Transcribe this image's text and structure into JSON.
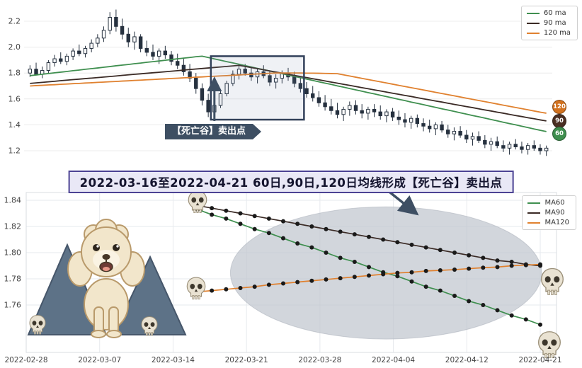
{
  "title": {
    "text": "2022-03-16至2022-04-21 60日,90日,120日均线形成【死亡谷】卖出点"
  },
  "annotations": {
    "sell_label": "【死亡谷】卖出点",
    "icons": [
      "skull-icon",
      "poodle-dog-icon",
      "mountain-icon",
      "arrow-up-icon",
      "arrow-down-right-icon"
    ]
  },
  "colors": {
    "ma60": "#3f8f4f",
    "ma90": "#3a2a25",
    "ma120": "#e0812f",
    "candle": "#26313f",
    "highlight_box": "#32415a",
    "arrow": "#3e4f63",
    "ellipse": "#bfc5cd",
    "title_border": "#4c4394",
    "title_bg": "#e9e8f6"
  },
  "chart_data": [
    {
      "type": "candlestick",
      "title": "",
      "xlabel": "",
      "ylabel": "",
      "yticks": [
        1.2,
        1.4,
        1.6,
        1.8,
        2.0,
        2.2
      ],
      "ylim": [
        1.14,
        2.33
      ],
      "grid": "horizontal",
      "legend_position": "upper right",
      "legend": [
        {
          "label": "60 ma",
          "color": "#3f8f4f"
        },
        {
          "label": "90 ma",
          "color": "#3a2a25"
        },
        {
          "label": "120 ma",
          "color": "#e0812f"
        }
      ],
      "badges": [
        {
          "label": "120",
          "color": "#d2711e",
          "y_value": 1.54
        },
        {
          "label": "90",
          "color": "#4a2e22",
          "y_value": 1.43
        },
        {
          "label": "60",
          "color": "#3f8f4f",
          "y_value": 1.33
        }
      ],
      "candles": [
        [
          1.8,
          1.86,
          1.77,
          1.83
        ],
        [
          1.83,
          1.88,
          1.8,
          1.79
        ],
        [
          1.79,
          1.85,
          1.76,
          1.82
        ],
        [
          1.82,
          1.9,
          1.8,
          1.88
        ],
        [
          1.88,
          1.94,
          1.85,
          1.91
        ],
        [
          1.91,
          1.96,
          1.87,
          1.89
        ],
        [
          1.89,
          1.95,
          1.86,
          1.93
        ],
        [
          1.93,
          1.99,
          1.9,
          1.97
        ],
        [
          1.97,
          2.02,
          1.93,
          1.95
        ],
        [
          1.95,
          2.01,
          1.92,
          1.99
        ],
        [
          1.99,
          2.06,
          1.96,
          2.03
        ],
        [
          2.03,
          2.1,
          2.0,
          2.07
        ],
        [
          2.07,
          2.16,
          2.04,
          2.13
        ],
        [
          2.13,
          2.27,
          2.1,
          2.23
        ],
        [
          2.23,
          2.29,
          2.12,
          2.16
        ],
        [
          2.16,
          2.22,
          2.06,
          2.1
        ],
        [
          2.1,
          2.15,
          2.0,
          2.04
        ],
        [
          2.04,
          2.12,
          1.98,
          2.08
        ],
        [
          2.08,
          2.1,
          1.96,
          1.99
        ],
        [
          1.99,
          2.05,
          1.93,
          1.96
        ],
        [
          1.96,
          2.02,
          1.9,
          1.93
        ],
        [
          1.93,
          1.99,
          1.87,
          1.97
        ],
        [
          1.97,
          2.01,
          1.91,
          1.94
        ],
        [
          1.94,
          1.97,
          1.86,
          1.89
        ],
        [
          1.89,
          1.95,
          1.83,
          1.86
        ],
        [
          1.86,
          1.91,
          1.78,
          1.81
        ],
        [
          1.81,
          1.87,
          1.73,
          1.76
        ],
        [
          1.76,
          1.8,
          1.64,
          1.68
        ],
        [
          1.68,
          1.72,
          1.55,
          1.59
        ],
        [
          1.59,
          1.64,
          1.46,
          1.5
        ],
        [
          1.5,
          1.58,
          1.45,
          1.55
        ],
        [
          1.55,
          1.66,
          1.53,
          1.64
        ],
        [
          1.64,
          1.74,
          1.62,
          1.72
        ],
        [
          1.72,
          1.82,
          1.7,
          1.79
        ],
        [
          1.79,
          1.86,
          1.75,
          1.83
        ],
        [
          1.83,
          1.87,
          1.78,
          1.8
        ],
        [
          1.8,
          1.85,
          1.74,
          1.77
        ],
        [
          1.77,
          1.83,
          1.72,
          1.81
        ],
        [
          1.81,
          1.86,
          1.76,
          1.78
        ],
        [
          1.78,
          1.82,
          1.7,
          1.73
        ],
        [
          1.73,
          1.79,
          1.68,
          1.76
        ],
        [
          1.76,
          1.82,
          1.72,
          1.8
        ],
        [
          1.8,
          1.84,
          1.74,
          1.77
        ],
        [
          1.77,
          1.81,
          1.69,
          1.72
        ],
        [
          1.72,
          1.77,
          1.65,
          1.68
        ],
        [
          1.68,
          1.73,
          1.61,
          1.64
        ],
        [
          1.64,
          1.7,
          1.58,
          1.61
        ],
        [
          1.61,
          1.66,
          1.54,
          1.57
        ],
        [
          1.57,
          1.63,
          1.51,
          1.54
        ],
        [
          1.54,
          1.6,
          1.48,
          1.51
        ],
        [
          1.51,
          1.57,
          1.45,
          1.48
        ],
        [
          1.48,
          1.54,
          1.43,
          1.52
        ],
        [
          1.52,
          1.58,
          1.47,
          1.55
        ],
        [
          1.55,
          1.59,
          1.48,
          1.51
        ],
        [
          1.51,
          1.56,
          1.45,
          1.49
        ],
        [
          1.49,
          1.54,
          1.44,
          1.52
        ],
        [
          1.52,
          1.56,
          1.46,
          1.5
        ],
        [
          1.5,
          1.55,
          1.44,
          1.47
        ],
        [
          1.47,
          1.52,
          1.42,
          1.5
        ],
        [
          1.5,
          1.53,
          1.43,
          1.46
        ],
        [
          1.46,
          1.51,
          1.4,
          1.44
        ],
        [
          1.44,
          1.49,
          1.38,
          1.42
        ],
        [
          1.42,
          1.47,
          1.37,
          1.45
        ],
        [
          1.45,
          1.48,
          1.38,
          1.41
        ],
        [
          1.41,
          1.45,
          1.35,
          1.39
        ],
        [
          1.39,
          1.44,
          1.34,
          1.37
        ],
        [
          1.37,
          1.42,
          1.32,
          1.4
        ],
        [
          1.4,
          1.43,
          1.34,
          1.36
        ],
        [
          1.36,
          1.4,
          1.3,
          1.33
        ],
        [
          1.33,
          1.38,
          1.28,
          1.35
        ],
        [
          1.35,
          1.39,
          1.3,
          1.32
        ],
        [
          1.32,
          1.36,
          1.26,
          1.29
        ],
        [
          1.29,
          1.34,
          1.24,
          1.31
        ],
        [
          1.31,
          1.35,
          1.26,
          1.28
        ],
        [
          1.28,
          1.32,
          1.22,
          1.25
        ],
        [
          1.25,
          1.3,
          1.2,
          1.27
        ],
        [
          1.27,
          1.31,
          1.22,
          1.24
        ],
        [
          1.24,
          1.28,
          1.19,
          1.22
        ],
        [
          1.22,
          1.27,
          1.17,
          1.25
        ],
        [
          1.25,
          1.29,
          1.21,
          1.23
        ],
        [
          1.23,
          1.27,
          1.18,
          1.21
        ],
        [
          1.21,
          1.26,
          1.17,
          1.24
        ],
        [
          1.24,
          1.28,
          1.2,
          1.22
        ],
        [
          1.22,
          1.25,
          1.17,
          1.2
        ],
        [
          1.2,
          1.24,
          1.16,
          1.22
        ]
      ],
      "series": [
        {
          "name": "60 ma",
          "color": "#3f8f4f",
          "values": [
            1.78,
            1.785,
            1.791,
            1.796,
            1.802,
            1.807,
            1.812,
            1.818,
            1.823,
            1.829,
            1.834,
            1.839,
            1.845,
            1.85,
            1.856,
            1.861,
            1.866,
            1.872,
            1.877,
            1.883,
            1.888,
            1.893,
            1.899,
            1.904,
            1.91,
            1.915,
            1.92,
            1.926,
            1.93,
            1.92,
            1.909,
            1.899,
            1.888,
            1.878,
            1.868,
            1.857,
            1.847,
            1.836,
            1.826,
            1.816,
            1.805,
            1.795,
            1.784,
            1.774,
            1.764,
            1.753,
            1.743,
            1.732,
            1.722,
            1.712,
            1.701,
            1.691,
            1.68,
            1.67,
            1.66,
            1.649,
            1.639,
            1.628,
            1.618,
            1.608,
            1.597,
            1.587,
            1.576,
            1.566,
            1.556,
            1.545,
            1.535,
            1.524,
            1.514,
            1.504,
            1.493,
            1.483,
            1.472,
            1.462,
            1.452,
            1.441,
            1.431,
            1.42,
            1.41,
            1.4,
            1.389,
            1.379,
            1.368,
            1.358,
            1.348
          ]
        },
        {
          "name": "90 ma",
          "color": "#3a2a25",
          "values": [
            1.72,
            1.724,
            1.728,
            1.732,
            1.736,
            1.741,
            1.745,
            1.749,
            1.753,
            1.757,
            1.761,
            1.765,
            1.769,
            1.773,
            1.777,
            1.782,
            1.786,
            1.79,
            1.794,
            1.798,
            1.802,
            1.806,
            1.81,
            1.814,
            1.818,
            1.823,
            1.827,
            1.831,
            1.835,
            1.839,
            1.843,
            1.847,
            1.851,
            1.855,
            1.859,
            1.851,
            1.842,
            1.834,
            1.825,
            1.816,
            1.808,
            1.799,
            1.791,
            1.782,
            1.773,
            1.765,
            1.756,
            1.748,
            1.739,
            1.73,
            1.722,
            1.713,
            1.705,
            1.696,
            1.687,
            1.679,
            1.67,
            1.662,
            1.653,
            1.644,
            1.636,
            1.627,
            1.619,
            1.61,
            1.601,
            1.593,
            1.584,
            1.576,
            1.567,
            1.558,
            1.55,
            1.541,
            1.533,
            1.524,
            1.515,
            1.507,
            1.498,
            1.49,
            1.481,
            1.472,
            1.464,
            1.455,
            1.447,
            1.438,
            1.43
          ]
        },
        {
          "name": "120 ma",
          "color": "#e0812f",
          "values": [
            1.7,
            1.703,
            1.705,
            1.708,
            1.71,
            1.713,
            1.715,
            1.718,
            1.72,
            1.723,
            1.725,
            1.728,
            1.73,
            1.733,
            1.735,
            1.738,
            1.74,
            1.743,
            1.745,
            1.748,
            1.75,
            1.753,
            1.755,
            1.758,
            1.76,
            1.763,
            1.765,
            1.768,
            1.77,
            1.773,
            1.775,
            1.778,
            1.78,
            1.783,
            1.785,
            1.788,
            1.79,
            1.793,
            1.795,
            1.798,
            1.8,
            1.8,
            1.8,
            1.8,
            1.8,
            1.799,
            1.799,
            1.798,
            1.797,
            1.796,
            1.795,
            1.786,
            1.777,
            1.768,
            1.759,
            1.75,
            1.741,
            1.732,
            1.723,
            1.714,
            1.705,
            1.696,
            1.687,
            1.678,
            1.669,
            1.66,
            1.651,
            1.642,
            1.633,
            1.624,
            1.615,
            1.606,
            1.597,
            1.588,
            1.579,
            1.57,
            1.561,
            1.552,
            1.543,
            1.534,
            1.525,
            1.516,
            1.507,
            1.498,
            1.49
          ]
        }
      ],
      "highlight_box": {
        "start_index": 30,
        "end_index": 44,
        "low": 1.44,
        "high": 1.93
      },
      "sell_annotation": {
        "label": "【死亡谷】卖出点",
        "arrow_index": 30
      }
    },
    {
      "type": "line",
      "title": "",
      "xlabel": "",
      "ylabel": "",
      "x_tick_labels": [
        "2022-02-28",
        "2022-03-07",
        "2022-03-14",
        "2022-03-21",
        "2022-03-28",
        "2022-04-04",
        "2022-04-12",
        "2022-04-21"
      ],
      "yticks": [
        1.76,
        1.78,
        1.8,
        1.82,
        1.84
      ],
      "ylim": [
        1.742,
        1.848
      ],
      "grid": "both",
      "legend_position": "upper right",
      "marker": {
        "shape": "circle",
        "color": "#1a1a1a"
      },
      "dates": [
        "2022-03-16",
        "2022-03-17",
        "2022-03-18",
        "2022-03-21",
        "2022-03-22",
        "2022-03-23",
        "2022-03-24",
        "2022-03-25",
        "2022-03-28",
        "2022-03-29",
        "2022-03-30",
        "2022-03-31",
        "2022-04-01",
        "2022-04-06",
        "2022-04-07",
        "2022-04-08",
        "2022-04-11",
        "2022-04-12",
        "2022-04-13",
        "2022-04-14",
        "2022-04-15",
        "2022-04-18",
        "2022-04-19",
        "2022-04-20",
        "2022-04-21"
      ],
      "legend": [
        {
          "label": "MA60",
          "color": "#3f8f4f"
        },
        {
          "label": "MA90",
          "color": "#3a2a25"
        },
        {
          "label": "MA120",
          "color": "#e0812f"
        }
      ],
      "series": [
        {
          "name": "MA60",
          "color": "#3f8f4f",
          "values": [
            1.833,
            1.829,
            1.826,
            1.822,
            1.818,
            1.815,
            1.811,
            1.807,
            1.804,
            1.8,
            1.796,
            1.793,
            1.789,
            1.785,
            1.782,
            1.778,
            1.774,
            1.771,
            1.767,
            1.763,
            1.76,
            1.756,
            1.752,
            1.749,
            1.745
          ]
        },
        {
          "name": "MA90",
          "color": "#3a2a25",
          "values": [
            1.836,
            1.834,
            1.832,
            1.83,
            1.828,
            1.826,
            1.824,
            1.822,
            1.82,
            1.818,
            1.816,
            1.814,
            1.812,
            1.81,
            1.808,
            1.806,
            1.804,
            1.802,
            1.8,
            1.798,
            1.796,
            1.794,
            1.793,
            1.791,
            1.79
          ]
        },
        {
          "name": "MA120",
          "color": "#e0812f",
          "values": [
            1.77,
            1.771,
            1.772,
            1.773,
            1.774,
            1.7755,
            1.7765,
            1.7775,
            1.7785,
            1.7795,
            1.7805,
            1.7815,
            1.7825,
            1.7835,
            1.7845,
            1.785,
            1.786,
            1.7865,
            1.787,
            1.7878,
            1.7885,
            1.789,
            1.79,
            1.7905,
            1.791
          ]
        }
      ],
      "highlight_ellipse": {
        "center_index": 13.2,
        "center_value": 1.7845,
        "radius_index": 10.9,
        "radius_value": 0.0505,
        "color": "#bfc5cd"
      }
    }
  ]
}
